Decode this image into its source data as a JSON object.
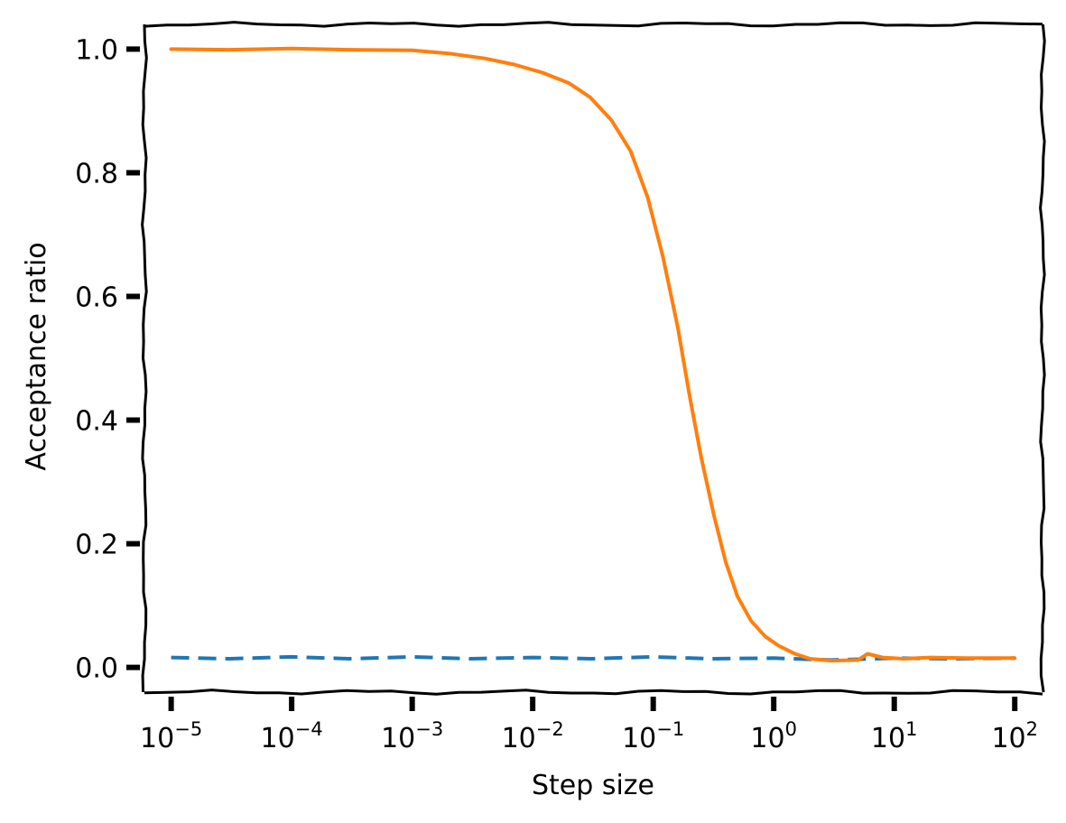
{
  "chart_data": {
    "type": "line",
    "xlabel": "Step size",
    "ylabel": "Acceptance ratio",
    "xscale": "log",
    "xlim": [
      6e-06,
      170
    ],
    "ylim": [
      -0.04,
      1.04
    ],
    "x_ticks": [
      {
        "base": "10",
        "exp": "−5",
        "value": 1e-05
      },
      {
        "base": "10",
        "exp": "−4",
        "value": 0.0001
      },
      {
        "base": "10",
        "exp": "−3",
        "value": 0.001
      },
      {
        "base": "10",
        "exp": "−2",
        "value": 0.01
      },
      {
        "base": "10",
        "exp": "−1",
        "value": 0.1
      },
      {
        "base": "10",
        "exp": "0",
        "value": 1
      },
      {
        "base": "10",
        "exp": "1",
        "value": 10
      },
      {
        "base": "10",
        "exp": "2",
        "value": 100
      }
    ],
    "y_ticks": [
      {
        "label": "0.0",
        "value": 0.0
      },
      {
        "label": "0.2",
        "value": 0.2
      },
      {
        "label": "0.4",
        "value": 0.4
      },
      {
        "label": "0.6",
        "value": 0.6
      },
      {
        "label": "0.8",
        "value": 0.8
      },
      {
        "label": "1.0",
        "value": 1.0
      }
    ],
    "grid": false,
    "legend": "none",
    "series": [
      {
        "style": "dashed",
        "color": "#1f77b4",
        "points": [
          [
            1e-05,
            0.016
          ],
          [
            3e-05,
            0.014
          ],
          [
            0.0001,
            0.017
          ],
          [
            0.0003,
            0.014
          ],
          [
            0.001,
            0.017
          ],
          [
            0.003,
            0.014
          ],
          [
            0.01,
            0.016
          ],
          [
            0.03,
            0.014
          ],
          [
            0.1,
            0.017
          ],
          [
            0.3,
            0.014
          ],
          [
            1,
            0.015
          ],
          [
            3,
            0.012
          ],
          [
            10,
            0.015
          ],
          [
            30,
            0.014
          ],
          [
            100,
            0.015
          ]
        ]
      },
      {
        "style": "solid",
        "color": "#ff7f0e",
        "points": [
          [
            1e-05,
            1.0
          ],
          [
            3e-05,
            0.999
          ],
          [
            0.0001,
            1.001
          ],
          [
            0.0003,
            0.999
          ],
          [
            0.001,
            0.998
          ],
          [
            0.002,
            0.993
          ],
          [
            0.004,
            0.985
          ],
          [
            0.007,
            0.975
          ],
          [
            0.012,
            0.962
          ],
          [
            0.02,
            0.945
          ],
          [
            0.03,
            0.922
          ],
          [
            0.045,
            0.885
          ],
          [
            0.065,
            0.835
          ],
          [
            0.09,
            0.76
          ],
          [
            0.12,
            0.665
          ],
          [
            0.16,
            0.55
          ],
          [
            0.2,
            0.44
          ],
          [
            0.25,
            0.34
          ],
          [
            0.32,
            0.245
          ],
          [
            0.4,
            0.17
          ],
          [
            0.5,
            0.115
          ],
          [
            0.65,
            0.075
          ],
          [
            0.85,
            0.05
          ],
          [
            1.1,
            0.035
          ],
          [
            1.5,
            0.022
          ],
          [
            2,
            0.014
          ],
          [
            3,
            0.011
          ],
          [
            5,
            0.012
          ],
          [
            6,
            0.022
          ],
          [
            8,
            0.016
          ],
          [
            12,
            0.014
          ],
          [
            20,
            0.016
          ],
          [
            40,
            0.015
          ],
          [
            100,
            0.015
          ]
        ]
      }
    ]
  }
}
